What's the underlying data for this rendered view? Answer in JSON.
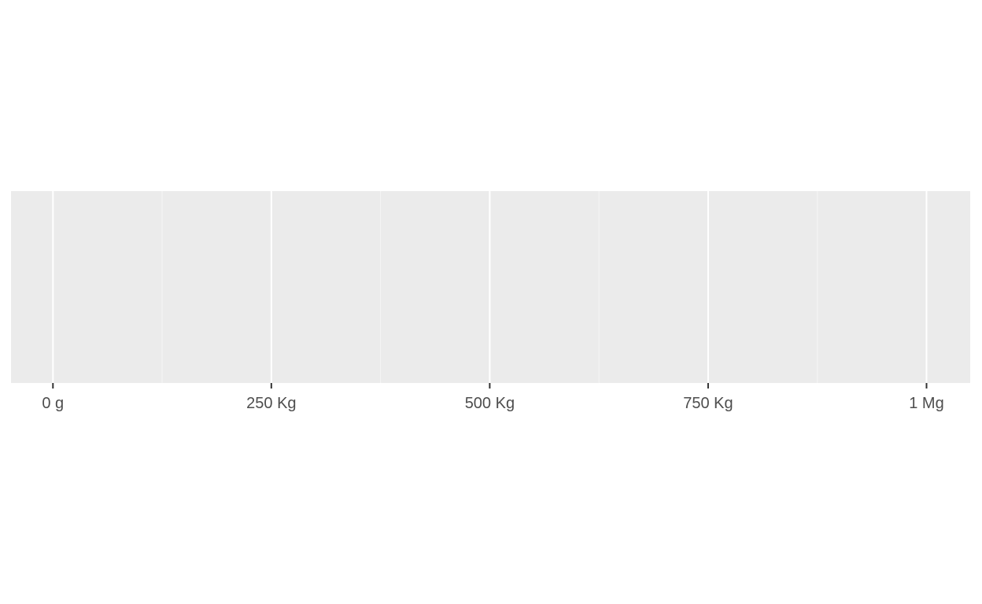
{
  "chart_data": {
    "type": "scatter",
    "title": "",
    "xlabel": "",
    "ylabel": "",
    "x_unit": "kg",
    "xlim": [
      -48,
      1050
    ],
    "x_ticks": [
      {
        "value": 0,
        "label": "0 g"
      },
      {
        "value": 250,
        "label": "250 Kg"
      },
      {
        "value": 500,
        "label": "500 Kg"
      },
      {
        "value": 750,
        "label": "750 Kg"
      },
      {
        "value": 1000,
        "label": "1 Mg"
      }
    ],
    "x_minor_ticks": [
      125,
      375,
      625,
      875
    ],
    "series": [],
    "grid": true,
    "legend": "none",
    "colors": {
      "panel_background": "#EBEBEB",
      "grid_major": "#FFFFFF",
      "grid_minor": "#F5F5F5",
      "tick_mark": "#333333",
      "tick_label": "#4D4D4D"
    }
  }
}
